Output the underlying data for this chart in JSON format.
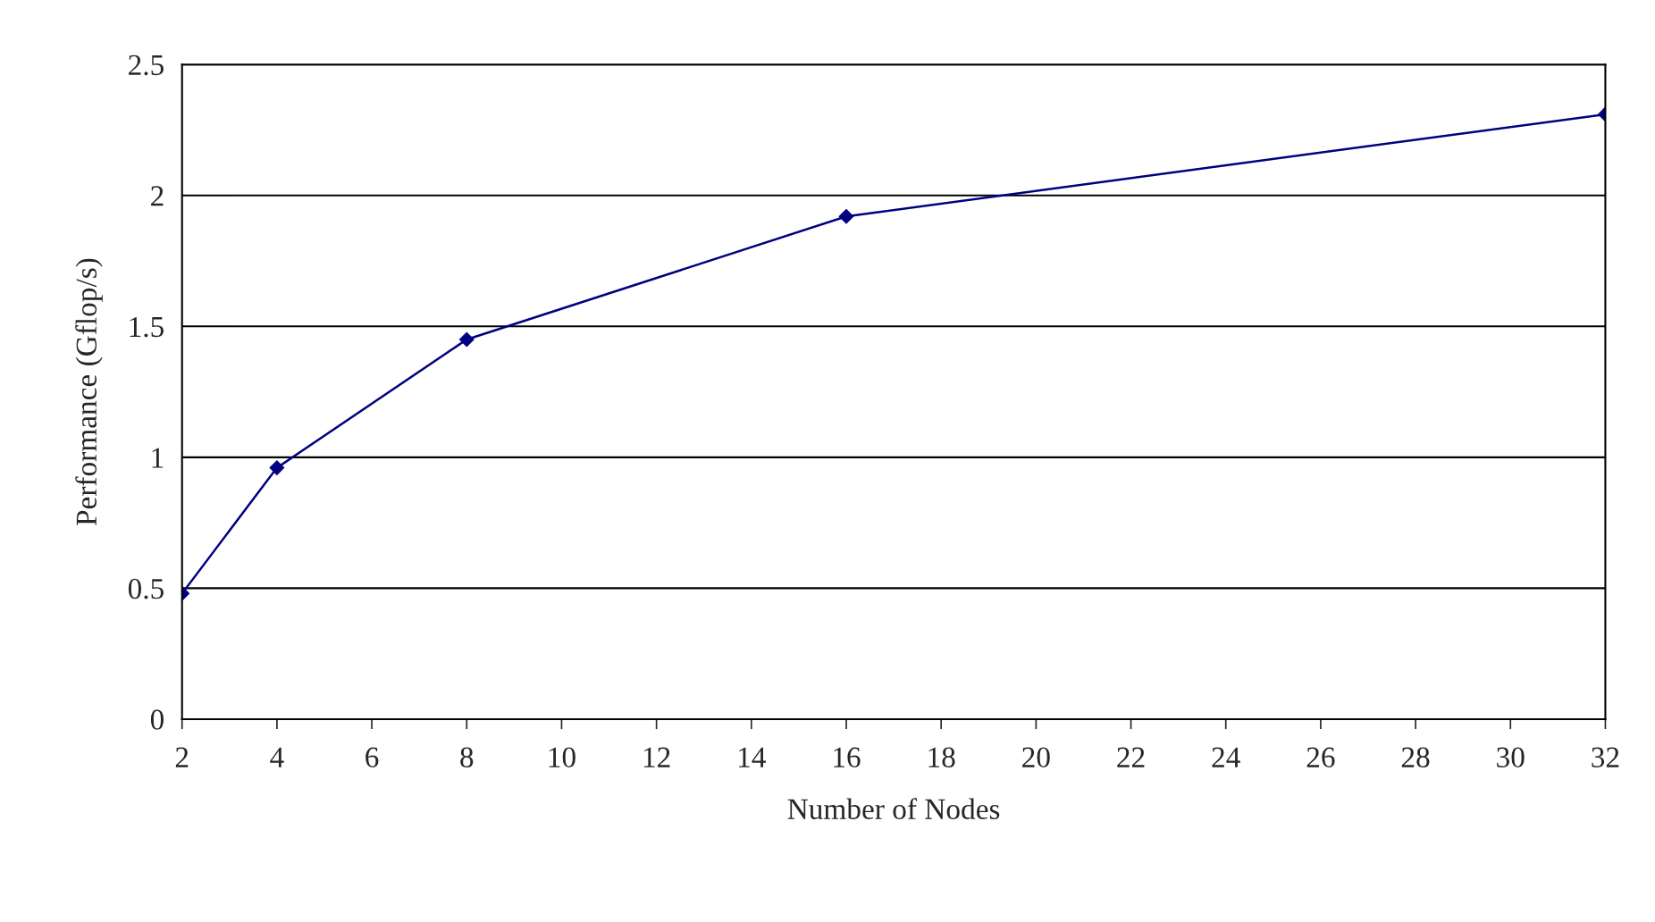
{
  "chart_data": {
    "type": "line",
    "xlabel": "Number of Nodes",
    "ylabel": "Performance (Gflop/s)",
    "x": [
      2,
      4,
      8,
      16,
      32
    ],
    "series": [
      {
        "color": "#000080",
        "values": [
          0.48,
          0.96,
          1.45,
          1.92,
          2.31
        ]
      }
    ],
    "xlim": [
      2,
      32
    ],
    "xticks": [
      2,
      4,
      6,
      8,
      10,
      12,
      14,
      16,
      18,
      20,
      22,
      24,
      26,
      28,
      30,
      32
    ],
    "ylim": [
      0,
      2.5
    ],
    "yticks": [
      0,
      0.5,
      1,
      1.5,
      2,
      2.5
    ],
    "grid": "y",
    "marker": "diamond",
    "line_style": "solid",
    "legend": false
  }
}
